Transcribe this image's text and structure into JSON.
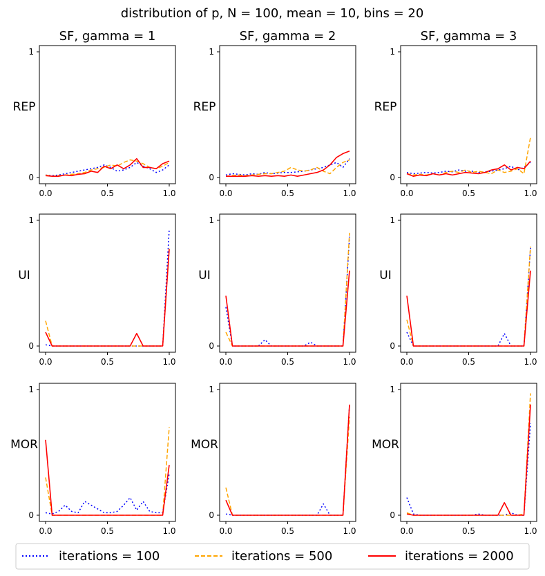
{
  "figure_title": "distribution of p, N = 100, mean = 10, bins = 20",
  "legend": [
    {
      "label": "iterations = 100",
      "color": "#0000ff",
      "dash": "dotted"
    },
    {
      "label": "iterations = 500",
      "color": "#ffa500",
      "dash": "dashed"
    },
    {
      "label": "iterations = 2000",
      "color": "#ff0000",
      "dash": "solid"
    }
  ],
  "chart_data": [
    {
      "type": "line",
      "title": "SF, gamma = 1",
      "ylabel": "REP",
      "xlim": [
        0,
        1
      ],
      "ylim": [
        0,
        1
      ],
      "xticks": [
        "0.0",
        "0.5",
        "1.0"
      ],
      "yticks": [
        "0",
        "1"
      ],
      "x": [
        0.0,
        0.053,
        0.105,
        0.158,
        0.211,
        0.263,
        0.316,
        0.368,
        0.421,
        0.474,
        0.526,
        0.579,
        0.632,
        0.684,
        0.737,
        0.789,
        0.842,
        0.895,
        0.947,
        1.0
      ],
      "series": [
        {
          "name": "iterations = 100",
          "values": [
            0.02,
            0.015,
            0.02,
            0.03,
            0.04,
            0.05,
            0.06,
            0.07,
            0.08,
            0.1,
            0.08,
            0.05,
            0.06,
            0.08,
            0.12,
            0.09,
            0.07,
            0.04,
            0.06,
            0.1
          ]
        },
        {
          "name": "iterations = 500",
          "values": [
            0.02,
            0.01,
            0.015,
            0.02,
            0.025,
            0.03,
            0.04,
            0.06,
            0.07,
            0.08,
            0.1,
            0.09,
            0.12,
            0.14,
            0.13,
            0.11,
            0.08,
            0.07,
            0.09,
            0.12
          ]
        },
        {
          "name": "iterations = 2000",
          "values": [
            0.015,
            0.01,
            0.01,
            0.02,
            0.015,
            0.025,
            0.03,
            0.05,
            0.04,
            0.09,
            0.07,
            0.1,
            0.07,
            0.1,
            0.15,
            0.08,
            0.08,
            0.07,
            0.11,
            0.13
          ]
        }
      ]
    },
    {
      "type": "line",
      "title": "SF, gamma = 2",
      "ylabel": "REP",
      "xlim": [
        0,
        1
      ],
      "ylim": [
        0,
        1
      ],
      "xticks": [
        "0.0",
        "0.5",
        "1.0"
      ],
      "yticks": [
        "0",
        "1"
      ],
      "x": [
        0.0,
        0.053,
        0.105,
        0.158,
        0.211,
        0.263,
        0.316,
        0.368,
        0.421,
        0.474,
        0.526,
        0.579,
        0.632,
        0.684,
        0.737,
        0.789,
        0.842,
        0.895,
        0.947,
        1.0
      ],
      "series": [
        {
          "name": "iterations = 100",
          "values": [
            0.02,
            0.03,
            0.025,
            0.02,
            0.03,
            0.025,
            0.04,
            0.03,
            0.035,
            0.04,
            0.04,
            0.045,
            0.05,
            0.06,
            0.07,
            0.08,
            0.1,
            0.12,
            0.08,
            0.15
          ]
        },
        {
          "name": "iterations = 500",
          "values": [
            0.01,
            0.015,
            0.02,
            0.015,
            0.02,
            0.025,
            0.03,
            0.03,
            0.04,
            0.05,
            0.08,
            0.06,
            0.05,
            0.06,
            0.08,
            0.05,
            0.03,
            0.08,
            0.12,
            0.14
          ]
        },
        {
          "name": "iterations = 2000",
          "values": [
            0.01,
            0.01,
            0.01,
            0.01,
            0.015,
            0.01,
            0.015,
            0.01,
            0.015,
            0.01,
            0.02,
            0.01,
            0.02,
            0.03,
            0.04,
            0.06,
            0.1,
            0.16,
            0.19,
            0.21
          ]
        }
      ]
    },
    {
      "type": "line",
      "title": "SF, gamma = 3",
      "ylabel": "REP",
      "xlim": [
        0,
        1
      ],
      "ylim": [
        0,
        1
      ],
      "xticks": [
        "0.0",
        "0.5",
        "1.0"
      ],
      "yticks": [
        "0",
        "1"
      ],
      "x": [
        0.0,
        0.053,
        0.105,
        0.158,
        0.211,
        0.263,
        0.316,
        0.368,
        0.421,
        0.474,
        0.526,
        0.579,
        0.632,
        0.684,
        0.737,
        0.789,
        0.842,
        0.895,
        0.947,
        1.0
      ],
      "series": [
        {
          "name": "iterations = 100",
          "values": [
            0.04,
            0.03,
            0.035,
            0.04,
            0.035,
            0.04,
            0.05,
            0.045,
            0.06,
            0.05,
            0.05,
            0.04,
            0.045,
            0.05,
            0.06,
            0.07,
            0.09,
            0.06,
            0.08,
            0.12
          ]
        },
        {
          "name": "iterations = 500",
          "values": [
            0.03,
            0.02,
            0.025,
            0.02,
            0.03,
            0.02,
            0.04,
            0.05,
            0.04,
            0.06,
            0.04,
            0.05,
            0.04,
            0.03,
            0.06,
            0.04,
            0.05,
            0.07,
            0.03,
            0.32
          ]
        },
        {
          "name": "iterations = 2000",
          "values": [
            0.03,
            0.01,
            0.02,
            0.015,
            0.03,
            0.02,
            0.03,
            0.02,
            0.03,
            0.04,
            0.035,
            0.03,
            0.04,
            0.06,
            0.07,
            0.1,
            0.06,
            0.08,
            0.07,
            0.13
          ]
        }
      ]
    },
    {
      "type": "line",
      "title": "",
      "ylabel": "UI",
      "xlim": [
        0,
        1
      ],
      "ylim": [
        0,
        1
      ],
      "xticks": [
        "0.0",
        "0.5",
        "1.0"
      ],
      "yticks": [
        "0",
        "1"
      ],
      "x": [
        0.0,
        0.053,
        0.105,
        0.158,
        0.211,
        0.263,
        0.316,
        0.368,
        0.421,
        0.474,
        0.526,
        0.579,
        0.632,
        0.684,
        0.737,
        0.789,
        0.842,
        0.895,
        0.947,
        1.0
      ],
      "series": [
        {
          "name": "iterations = 100",
          "values": [
            0.01,
            0,
            0,
            0,
            0,
            0,
            0,
            0,
            0,
            0,
            0,
            0,
            0,
            0,
            0,
            0,
            0,
            0,
            0,
            0.93
          ]
        },
        {
          "name": "iterations = 500",
          "values": [
            0.2,
            0,
            0,
            0,
            0,
            0,
            0,
            0,
            0,
            0,
            0,
            0,
            0,
            0,
            0,
            0,
            0,
            0,
            0,
            0.78
          ]
        },
        {
          "name": "iterations = 2000",
          "values": [
            0.11,
            0,
            0,
            0,
            0,
            0,
            0,
            0,
            0,
            0,
            0,
            0,
            0,
            0,
            0.1,
            0,
            0,
            0,
            0,
            0.77
          ]
        }
      ]
    },
    {
      "type": "line",
      "title": "",
      "ylabel": "UI",
      "xlim": [
        0,
        1
      ],
      "ylim": [
        0,
        1
      ],
      "xticks": [
        "0.0",
        "0.5",
        "1.0"
      ],
      "yticks": [
        "0",
        "1"
      ],
      "x": [
        0.0,
        0.053,
        0.105,
        0.158,
        0.211,
        0.263,
        0.316,
        0.368,
        0.421,
        0.474,
        0.526,
        0.579,
        0.632,
        0.684,
        0.737,
        0.789,
        0.842,
        0.895,
        0.947,
        1.0
      ],
      "series": [
        {
          "name": "iterations = 100",
          "values": [
            0.31,
            0,
            0,
            0,
            0,
            0,
            0.05,
            0,
            0,
            0,
            0,
            0,
            0,
            0.03,
            0,
            0,
            0,
            0,
            0,
            0.87
          ]
        },
        {
          "name": "iterations = 500",
          "values": [
            0.11,
            0,
            0,
            0,
            0,
            0,
            0,
            0,
            0,
            0,
            0,
            0,
            0,
            0,
            0,
            0,
            0,
            0,
            0,
            0.9
          ]
        },
        {
          "name": "iterations = 2000",
          "values": [
            0.4,
            0,
            0,
            0,
            0,
            0,
            0,
            0,
            0,
            0,
            0,
            0,
            0,
            0,
            0,
            0,
            0,
            0,
            0,
            0.6
          ]
        }
      ]
    },
    {
      "type": "line",
      "title": "",
      "ylabel": "UI",
      "xlim": [
        0,
        1
      ],
      "ylim": [
        0,
        1
      ],
      "xticks": [
        "0.0",
        "0.5",
        "1.0"
      ],
      "yticks": [
        "0",
        "1"
      ],
      "x": [
        0.0,
        0.053,
        0.105,
        0.158,
        0.211,
        0.263,
        0.316,
        0.368,
        0.421,
        0.474,
        0.526,
        0.579,
        0.632,
        0.684,
        0.737,
        0.789,
        0.842,
        0.895,
        0.947,
        1.0
      ],
      "series": [
        {
          "name": "iterations = 100",
          "values": [
            0.11,
            0,
            0,
            0,
            0,
            0,
            0,
            0,
            0,
            0,
            0,
            0,
            0,
            0,
            0,
            0.1,
            0,
            0,
            0,
            0.78
          ]
        },
        {
          "name": "iterations = 500",
          "values": [
            0.21,
            0,
            0,
            0,
            0,
            0,
            0,
            0,
            0,
            0,
            0,
            0,
            0,
            0,
            0,
            0,
            0,
            0,
            0,
            0.79
          ]
        },
        {
          "name": "iterations = 2000",
          "values": [
            0.4,
            0,
            0,
            0,
            0,
            0,
            0,
            0,
            0,
            0,
            0,
            0,
            0,
            0,
            0,
            0,
            0,
            0,
            0,
            0.6
          ]
        }
      ]
    },
    {
      "type": "line",
      "title": "",
      "ylabel": "MOR",
      "xlim": [
        0,
        1
      ],
      "ylim": [
        0,
        1
      ],
      "xticks": [
        "0.0",
        "0.5",
        "1.0"
      ],
      "yticks": [
        "0",
        "1"
      ],
      "x": [
        0.0,
        0.053,
        0.105,
        0.158,
        0.211,
        0.263,
        0.316,
        0.368,
        0.421,
        0.474,
        0.526,
        0.579,
        0.632,
        0.684,
        0.737,
        0.789,
        0.842,
        0.895,
        0.947,
        1.0
      ],
      "series": [
        {
          "name": "iterations = 100",
          "values": [
            0.02,
            0.01,
            0.03,
            0.08,
            0.03,
            0.02,
            0.11,
            0.08,
            0.05,
            0.02,
            0.02,
            0.03,
            0.08,
            0.14,
            0.04,
            0.11,
            0.03,
            0.02,
            0.02,
            0.33
          ]
        },
        {
          "name": "iterations = 500",
          "values": [
            0.3,
            0,
            0,
            0,
            0,
            0,
            0,
            0,
            0,
            0,
            0,
            0,
            0,
            0,
            0,
            0,
            0,
            0,
            0,
            0.7
          ]
        },
        {
          "name": "iterations = 2000",
          "values": [
            0.6,
            0,
            0,
            0,
            0,
            0,
            0,
            0,
            0,
            0,
            0,
            0,
            0,
            0,
            0,
            0,
            0,
            0,
            0,
            0.4
          ]
        }
      ]
    },
    {
      "type": "line",
      "title": "",
      "ylabel": "MOR",
      "xlim": [
        0,
        1
      ],
      "ylim": [
        0,
        1
      ],
      "xticks": [
        "0.0",
        "0.5",
        "1.0"
      ],
      "yticks": [
        "0",
        "1"
      ],
      "x": [
        0.0,
        0.053,
        0.105,
        0.158,
        0.211,
        0.263,
        0.316,
        0.368,
        0.421,
        0.474,
        0.526,
        0.579,
        0.632,
        0.684,
        0.737,
        0.789,
        0.842,
        0.895,
        0.947,
        1.0
      ],
      "series": [
        {
          "name": "iterations = 100",
          "values": [
            0.01,
            0,
            0,
            0,
            0,
            0,
            0,
            0,
            0,
            0,
            0,
            0,
            0,
            0,
            0,
            0.09,
            0,
            0,
            0,
            0.88
          ]
        },
        {
          "name": "iterations = 500",
          "values": [
            0.22,
            0,
            0,
            0,
            0,
            0,
            0,
            0,
            0,
            0,
            0,
            0,
            0,
            0,
            0,
            0,
            0,
            0,
            0,
            0.78
          ]
        },
        {
          "name": "iterations = 2000",
          "values": [
            0.12,
            0,
            0,
            0,
            0,
            0,
            0,
            0,
            0,
            0,
            0,
            0,
            0,
            0,
            0,
            0,
            0,
            0,
            0,
            0.88
          ]
        }
      ]
    },
    {
      "type": "line",
      "title": "",
      "ylabel": "MOR",
      "xlim": [
        0,
        1
      ],
      "ylim": [
        0,
        1
      ],
      "xticks": [
        "0.0",
        "0.5",
        "1.0"
      ],
      "yticks": [
        "0",
        "1"
      ],
      "x": [
        0.0,
        0.053,
        0.105,
        0.158,
        0.211,
        0.263,
        0.316,
        0.368,
        0.421,
        0.474,
        0.526,
        0.579,
        0.632,
        0.684,
        0.737,
        0.789,
        0.842,
        0.895,
        0.947,
        1.0
      ],
      "series": [
        {
          "name": "iterations = 100",
          "values": [
            0.14,
            0.01,
            0,
            0,
            0,
            0,
            0,
            0,
            0,
            0,
            0,
            0.01,
            0,
            0,
            0,
            0,
            0.02,
            0,
            0,
            0.73
          ]
        },
        {
          "name": "iterations = 500",
          "values": [
            0.02,
            0,
            0,
            0,
            0,
            0,
            0,
            0,
            0,
            0,
            0,
            0,
            0,
            0,
            0,
            0,
            0,
            0,
            0.01,
            0.97
          ]
        },
        {
          "name": "iterations = 2000",
          "values": [
            0.01,
            0,
            0,
            0,
            0,
            0,
            0,
            0,
            0,
            0,
            0,
            0,
            0,
            0,
            0,
            0.1,
            0,
            0,
            0,
            0.88
          ]
        }
      ]
    }
  ]
}
